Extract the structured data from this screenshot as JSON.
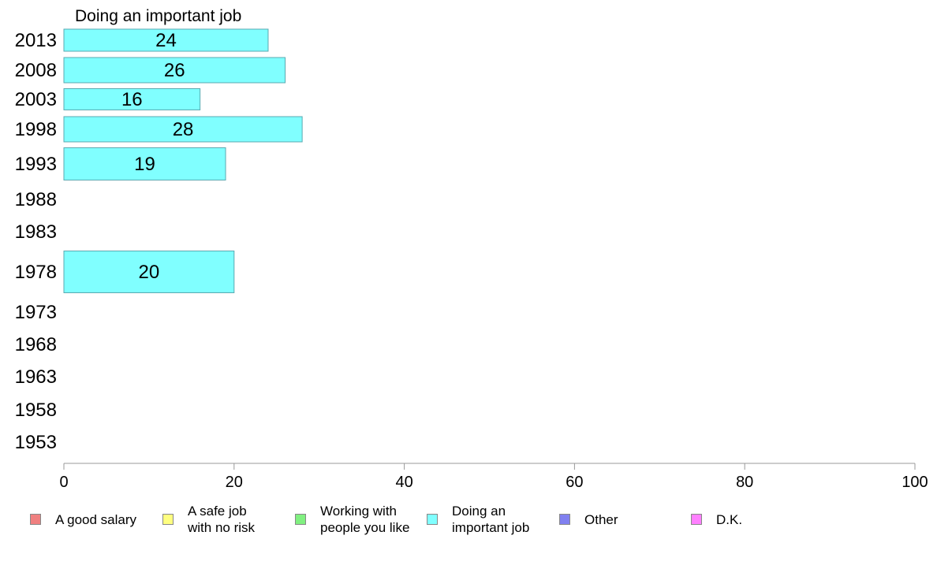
{
  "chart_data": {
    "type": "bar",
    "orientation": "horizontal",
    "title": "Doing an important job",
    "xlabel": "",
    "ylabel": "",
    "categories": [
      "2013",
      "2008",
      "2003",
      "1998",
      "1993",
      "1988",
      "1983",
      "1978",
      "1973",
      "1968",
      "1963",
      "1958",
      "1953"
    ],
    "values": [
      24,
      26,
      16,
      28,
      19,
      null,
      null,
      20,
      null,
      null,
      null,
      null,
      null
    ],
    "value_labels": [
      "24",
      "26",
      "16",
      "28",
      "19",
      "",
      "",
      "20",
      "",
      "",
      "",
      "",
      ""
    ],
    "bar_color": "#80ffff",
    "xlim": [
      0,
      100
    ],
    "xticks": [
      0,
      20,
      40,
      60,
      80,
      100
    ],
    "xtick_labels": [
      "0",
      "20",
      "40",
      "60",
      "80",
      "100"
    ],
    "grid": false,
    "legend_position": "bottom",
    "legend": [
      {
        "label": "A good salary",
        "color": "#f08080"
      },
      {
        "label": "A safe job\nwith no risk",
        "color": "#ffff80"
      },
      {
        "label": "Working with\npeople you like",
        "color": "#80f080"
      },
      {
        "label": "Doing an\nimportant job",
        "color": "#80ffff"
      },
      {
        "label": "Other",
        "color": "#8080f0"
      },
      {
        "label": "D.K.",
        "color": "#ff80ff"
      }
    ]
  }
}
